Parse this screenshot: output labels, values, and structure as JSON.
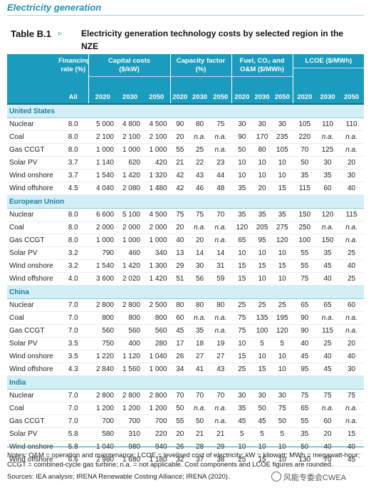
{
  "section_title": "Electricity generation",
  "table_label": "Table B.1",
  "table_arrow": "▹",
  "caption": "Electricity generation technology costs by selected region in the NZE",
  "header": {
    "financing": "Financing rate (%)",
    "capital": "Capital costs ($/kW)",
    "capacity": "Capacity factor (%)",
    "fuel": "Fuel, CO₂ and O&M ($/MWh)",
    "lcoe": "LCOE ($/MWh)",
    "fin_sub": "All",
    "years": [
      "2020",
      "2030",
      "2050",
      "2020",
      "2030",
      "2050",
      "2020",
      "2030",
      "2050",
      "2020",
      "2030",
      "2050"
    ]
  },
  "regions": [
    {
      "name": "United States",
      "rows": [
        {
          "tech": "Nuclear",
          "cells": [
            "8.0",
            "5 000",
            "4 800",
            "4 500",
            "90",
            "80",
            "75",
            "30",
            "30",
            "30",
            "105",
            "110",
            "110"
          ]
        },
        {
          "tech": "Coal",
          "cells": [
            "8.0",
            "2 100",
            "2 100",
            "2 100",
            "20",
            "n.a.",
            "n.a.",
            "90",
            "170",
            "235",
            "220",
            "n.a.",
            "n.a."
          ]
        },
        {
          "tech": "Gas CCGT",
          "cells": [
            "8.0",
            "1 000",
            "1 000",
            "1 000",
            "55",
            "25",
            "n.a.",
            "50",
            "80",
            "105",
            "70",
            "125",
            "n.a."
          ]
        },
        {
          "tech": "Solar PV",
          "cells": [
            "3.7",
            "1 140",
            "620",
            "420",
            "21",
            "22",
            "23",
            "10",
            "10",
            "10",
            "50",
            "30",
            "20"
          ]
        },
        {
          "tech": "Wind onshore",
          "cells": [
            "3.7",
            "1 540",
            "1 420",
            "1 320",
            "42",
            "43",
            "44",
            "10",
            "10",
            "10",
            "35",
            "35",
            "30"
          ]
        },
        {
          "tech": "Wind offshore",
          "cells": [
            "4.5",
            "4 040",
            "2 080",
            "1 480",
            "42",
            "46",
            "48",
            "35",
            "20",
            "15",
            "115",
            "60",
            "40"
          ]
        }
      ]
    },
    {
      "name": "European Union",
      "rows": [
        {
          "tech": "Nuclear",
          "cells": [
            "8.0",
            "6 600",
            "5 100",
            "4 500",
            "75",
            "75",
            "70",
            "35",
            "35",
            "35",
            "150",
            "120",
            "115"
          ]
        },
        {
          "tech": "Coal",
          "cells": [
            "8.0",
            "2 000",
            "2 000",
            "2 000",
            "20",
            "n.a.",
            "n.a.",
            "120",
            "205",
            "275",
            "250",
            "n.a.",
            "n.a."
          ]
        },
        {
          "tech": "Gas CCGT",
          "cells": [
            "8.0",
            "1 000",
            "1 000",
            "1 000",
            "40",
            "20",
            "n.a.",
            "65",
            "95",
            "120",
            "100",
            "150",
            "n.a."
          ]
        },
        {
          "tech": "Solar PV",
          "cells": [
            "3.2",
            "790",
            "460",
            "340",
            "13",
            "14",
            "14",
            "10",
            "10",
            "10",
            "55",
            "35",
            "25"
          ]
        },
        {
          "tech": "Wind onshore",
          "cells": [
            "3.2",
            "1 540",
            "1 420",
            "1 300",
            "29",
            "30",
            "31",
            "15",
            "15",
            "15",
            "55",
            "45",
            "40"
          ]
        },
        {
          "tech": "Wind offshore",
          "cells": [
            "4.0",
            "3 600",
            "2 020",
            "1 420",
            "51",
            "56",
            "59",
            "15",
            "10",
            "10",
            "75",
            "40",
            "25"
          ]
        }
      ]
    },
    {
      "name": "China",
      "rows": [
        {
          "tech": "Nuclear",
          "cells": [
            "7.0",
            "2 800",
            "2 800",
            "2 500",
            "80",
            "80",
            "80",
            "25",
            "25",
            "25",
            "65",
            "65",
            "60"
          ]
        },
        {
          "tech": "Coal",
          "cells": [
            "7.0",
            "800",
            "800",
            "800",
            "60",
            "n.a.",
            "n.a.",
            "75",
            "135",
            "195",
            "90",
            "n.a.",
            "n.a."
          ]
        },
        {
          "tech": "Gas CCGT",
          "cells": [
            "7.0",
            "560",
            "560",
            "560",
            "45",
            "35",
            "n.a.",
            "75",
            "100",
            "120",
            "90",
            "115",
            "n.a."
          ]
        },
        {
          "tech": "Solar PV",
          "cells": [
            "3.5",
            "750",
            "400",
            "280",
            "17",
            "18",
            "19",
            "10",
            "5",
            "5",
            "40",
            "25",
            "20"
          ]
        },
        {
          "tech": "Wind onshore",
          "cells": [
            "3.5",
            "1 220",
            "1 120",
            "1 040",
            "26",
            "27",
            "27",
            "15",
            "10",
            "10",
            "45",
            "40",
            "40"
          ]
        },
        {
          "tech": "Wind offshore",
          "cells": [
            "4.3",
            "2 840",
            "1 560",
            "1 000",
            "34",
            "41",
            "43",
            "25",
            "15",
            "10",
            "95",
            "45",
            "30"
          ]
        }
      ]
    },
    {
      "name": "India",
      "rows": [
        {
          "tech": "Nuclear",
          "cells": [
            "7.0",
            "2 800",
            "2 800",
            "2 800",
            "70",
            "70",
            "70",
            "30",
            "30",
            "30",
            "75",
            "75",
            "75"
          ]
        },
        {
          "tech": "Coal",
          "cells": [
            "7.0",
            "1 200",
            "1 200",
            "1 200",
            "50",
            "n.a.",
            "n.a.",
            "35",
            "50",
            "75",
            "65",
            "n.a.",
            "n.a."
          ]
        },
        {
          "tech": "Gas CCGT",
          "cells": [
            "7.0",
            "700",
            "700",
            "700",
            "55",
            "50",
            "n.a.",
            "45",
            "45",
            "50",
            "55",
            "60",
            "n.a."
          ]
        },
        {
          "tech": "Solar PV",
          "cells": [
            "5.8",
            "580",
            "310",
            "220",
            "20",
            "21",
            "21",
            "5",
            "5",
            "5",
            "35",
            "20",
            "15"
          ]
        },
        {
          "tech": "Wind onshore",
          "cells": [
            "5.8",
            "1 040",
            "980",
            "940",
            "26",
            "28",
            "29",
            "10",
            "10",
            "10",
            "50",
            "40",
            "40"
          ]
        },
        {
          "tech": "Wind offshore",
          "cells": [
            "6.6",
            "2 980",
            "1 680",
            "1 180",
            "32",
            "37",
            "38",
            "25",
            "15",
            "10",
            "130",
            "70",
            "45"
          ]
        }
      ]
    }
  ],
  "notes": "Notes: O&M = operation and maintenance; LCOE = levelised cost of electricity; kW = kilowatt; MWh = megawatt-hour; CCGT = combined-cycle gas turbine; n.a. = not applicable. Cost components and LCOE figures are rounded.",
  "sources": "Sources: IEA analysis; IRENA Renewable Costing Alliance; IRENA (2020).",
  "watermark": "风能专委会CWEA"
}
